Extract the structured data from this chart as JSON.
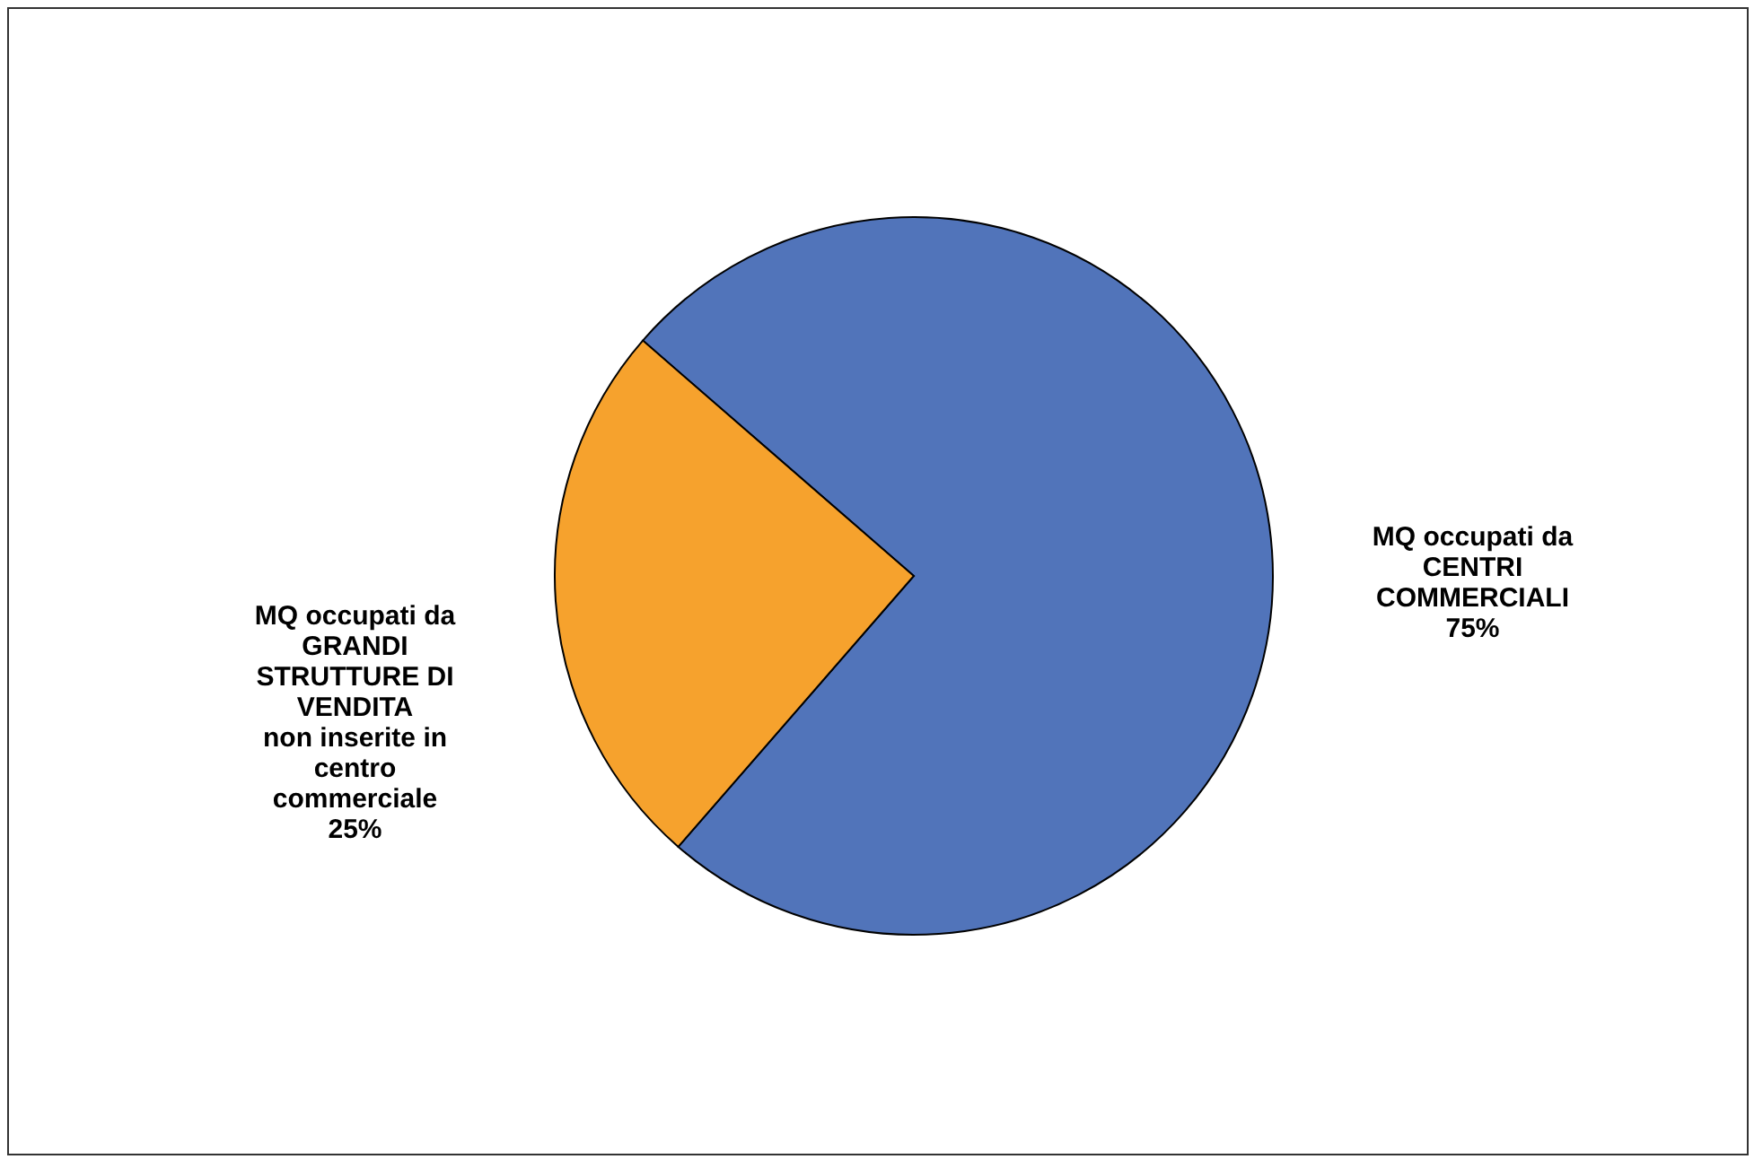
{
  "chart_data": {
    "type": "pie",
    "categories": [
      "MQ occupati da\nCENTRI\nCOMMERCIALI",
      "MQ occupati da\nGRANDI\nSTRUTTURE DI\nVENDITA\nnon inserite in\ncentro\ncommerciale"
    ],
    "values": [
      75,
      25
    ],
    "value_labels": [
      "75%",
      "25%"
    ],
    "colors": [
      "#5174ba",
      "#f6a22d"
    ]
  }
}
